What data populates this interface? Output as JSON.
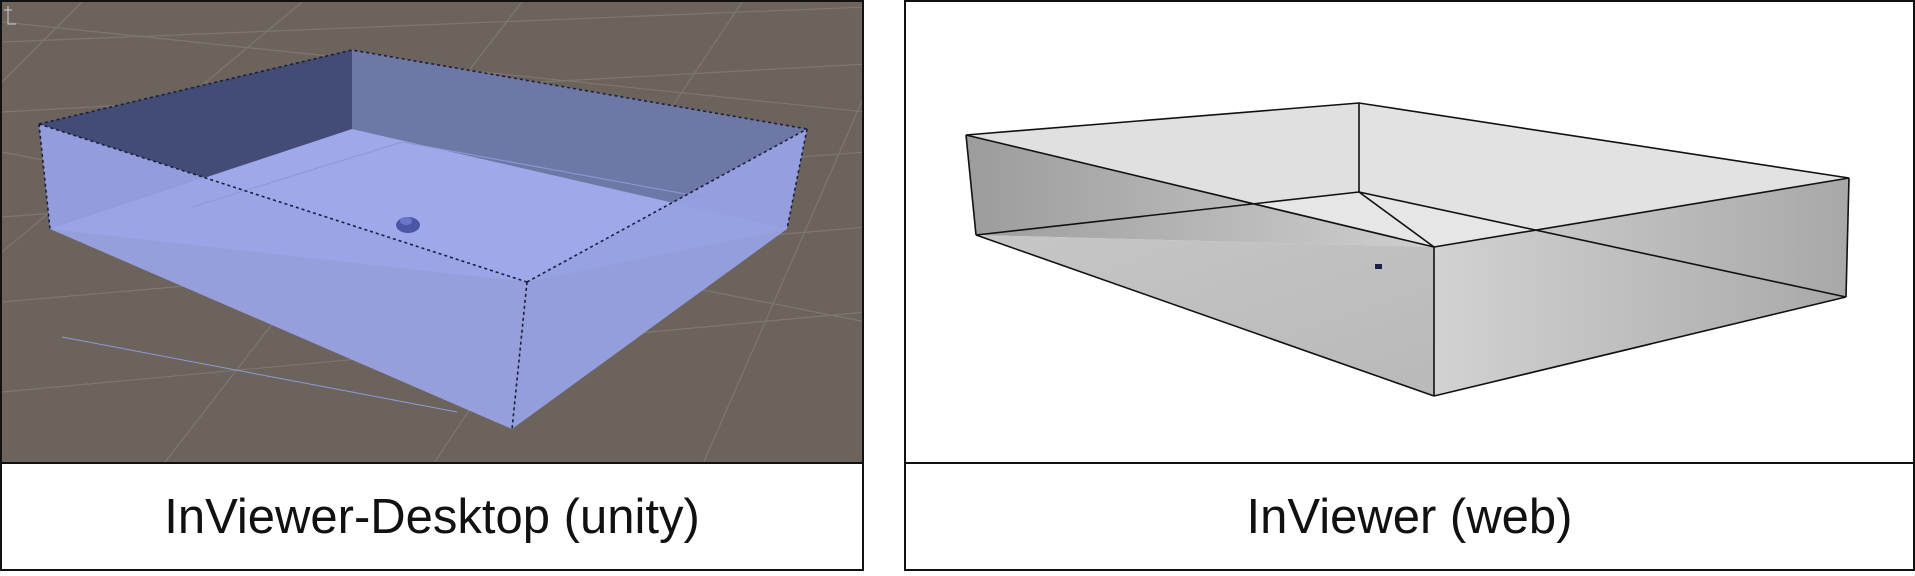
{
  "panels": [
    {
      "caption": "InViewer-Desktop (unity)",
      "background_color": "#6b635c",
      "box_color": "#9ea8ea"
    },
    {
      "caption": "InViewer (web)",
      "background_color": "#ffffff",
      "box_color": "#d6d6d6"
    }
  ]
}
